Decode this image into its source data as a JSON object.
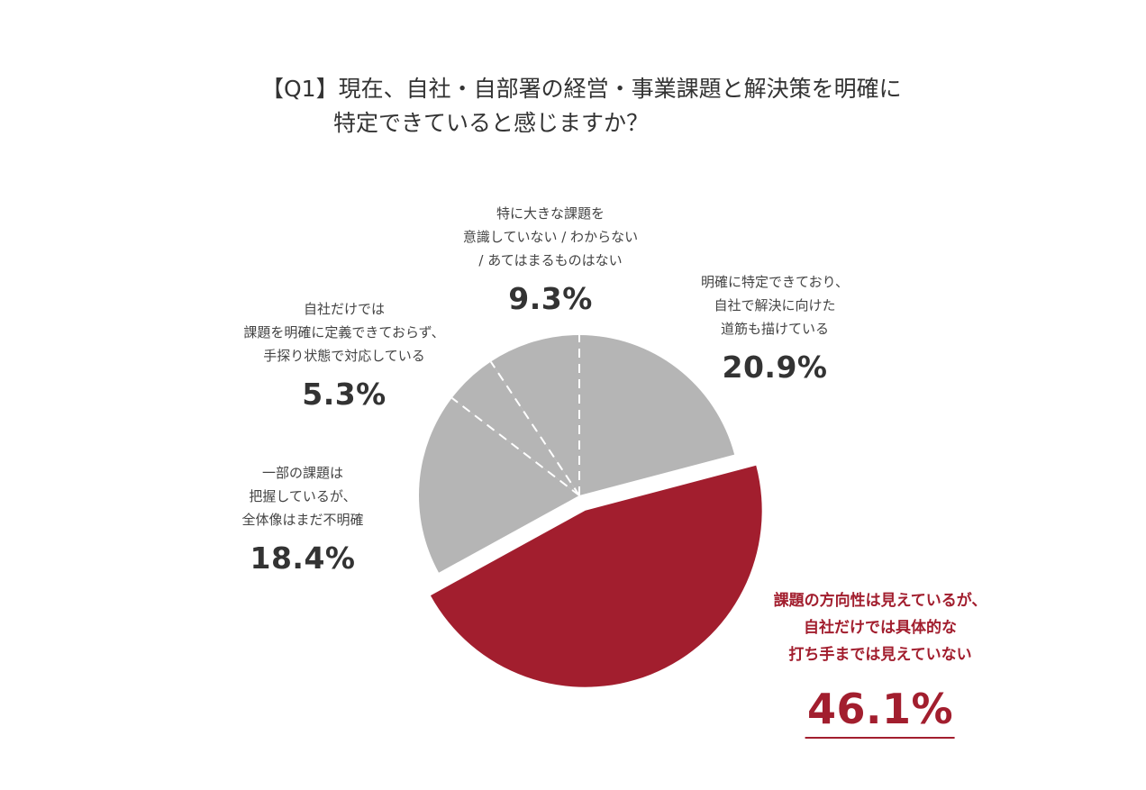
{
  "title": {
    "line1": "【Q1】現在、自社・自部署の経営・事業課題と解決策を明確に",
    "line2": "特定できていると感じますか？"
  },
  "colors": {
    "accent": "#a21e2e",
    "gray": "#b5b5b5",
    "divider": "#ffffff"
  },
  "chart_data": {
    "type": "pie",
    "title": "【Q1】現在、自社・自部署の経営・事業課題と解決策を明確に特定できていると感じますか？",
    "start": "12 o'clock, clockwise",
    "slices": [
      {
        "lines": [
          "明確に特定できており、",
          "自社で解決に向けた",
          "道筋も描けている"
        ],
        "value": 20.9,
        "label": "20.9%",
        "color": "#b5b5b5",
        "exploded": false
      },
      {
        "lines": [
          "課題の方向性は見えているが、",
          "自社だけでは具体的な",
          "打ち手までは見えていない"
        ],
        "value": 46.1,
        "label": "46.1%",
        "color": "#a21e2e",
        "exploded": true
      },
      {
        "lines": [
          "一部の課題は",
          "把握しているが、",
          "全体像はまだ不明確"
        ],
        "value": 18.4,
        "label": "18.4%",
        "color": "#b5b5b5",
        "exploded": false
      },
      {
        "lines": [
          "自社だけでは",
          "課題を明確に定義できておらず、",
          "手探り状態で対応している"
        ],
        "value": 5.3,
        "label": "5.3%",
        "color": "#b5b5b5",
        "exploded": false
      },
      {
        "lines": [
          "特に大きな課題を",
          "意識していない / わからない",
          "/ あてはまるものはない"
        ],
        "value": 9.3,
        "label": "9.3%",
        "color": "#b5b5b5",
        "exploded": false
      }
    ]
  }
}
